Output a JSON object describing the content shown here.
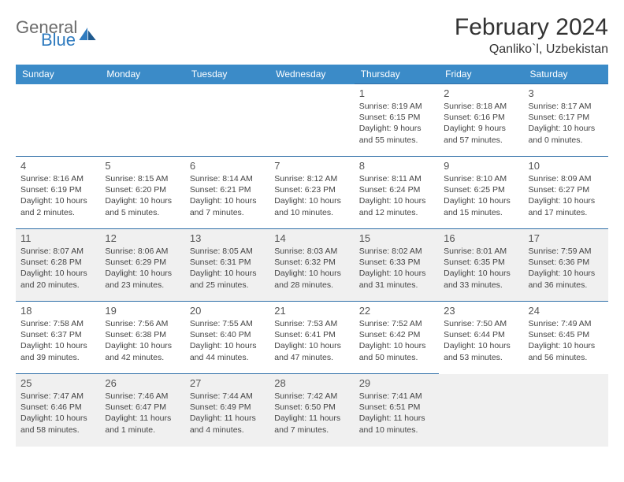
{
  "logo": {
    "part1": "General",
    "part2": "Blue"
  },
  "title": "February 2024",
  "location": "Qanliko`l, Uzbekistan",
  "colors": {
    "header_bg": "#3b8bc8",
    "header_text": "#ffffff",
    "rule": "#2f6fa8",
    "shaded_row": "#f0f0f0",
    "logo_gray": "#6b6b6b",
    "logo_blue": "#2f7bbf"
  },
  "weekdays": [
    "Sunday",
    "Monday",
    "Tuesday",
    "Wednesday",
    "Thursday",
    "Friday",
    "Saturday"
  ],
  "weeks": [
    {
      "shaded": false,
      "days": [
        null,
        null,
        null,
        null,
        {
          "n": "1",
          "sunrise": "8:19 AM",
          "sunset": "6:15 PM",
          "daylight": "9 hours and 55 minutes."
        },
        {
          "n": "2",
          "sunrise": "8:18 AM",
          "sunset": "6:16 PM",
          "daylight": "9 hours and 57 minutes."
        },
        {
          "n": "3",
          "sunrise": "8:17 AM",
          "sunset": "6:17 PM",
          "daylight": "10 hours and 0 minutes."
        }
      ]
    },
    {
      "shaded": false,
      "days": [
        {
          "n": "4",
          "sunrise": "8:16 AM",
          "sunset": "6:19 PM",
          "daylight": "10 hours and 2 minutes."
        },
        {
          "n": "5",
          "sunrise": "8:15 AM",
          "sunset": "6:20 PM",
          "daylight": "10 hours and 5 minutes."
        },
        {
          "n": "6",
          "sunrise": "8:14 AM",
          "sunset": "6:21 PM",
          "daylight": "10 hours and 7 minutes."
        },
        {
          "n": "7",
          "sunrise": "8:12 AM",
          "sunset": "6:23 PM",
          "daylight": "10 hours and 10 minutes."
        },
        {
          "n": "8",
          "sunrise": "8:11 AM",
          "sunset": "6:24 PM",
          "daylight": "10 hours and 12 minutes."
        },
        {
          "n": "9",
          "sunrise": "8:10 AM",
          "sunset": "6:25 PM",
          "daylight": "10 hours and 15 minutes."
        },
        {
          "n": "10",
          "sunrise": "8:09 AM",
          "sunset": "6:27 PM",
          "daylight": "10 hours and 17 minutes."
        }
      ]
    },
    {
      "shaded": true,
      "days": [
        {
          "n": "11",
          "sunrise": "8:07 AM",
          "sunset": "6:28 PM",
          "daylight": "10 hours and 20 minutes."
        },
        {
          "n": "12",
          "sunrise": "8:06 AM",
          "sunset": "6:29 PM",
          "daylight": "10 hours and 23 minutes."
        },
        {
          "n": "13",
          "sunrise": "8:05 AM",
          "sunset": "6:31 PM",
          "daylight": "10 hours and 25 minutes."
        },
        {
          "n": "14",
          "sunrise": "8:03 AM",
          "sunset": "6:32 PM",
          "daylight": "10 hours and 28 minutes."
        },
        {
          "n": "15",
          "sunrise": "8:02 AM",
          "sunset": "6:33 PM",
          "daylight": "10 hours and 31 minutes."
        },
        {
          "n": "16",
          "sunrise": "8:01 AM",
          "sunset": "6:35 PM",
          "daylight": "10 hours and 33 minutes."
        },
        {
          "n": "17",
          "sunrise": "7:59 AM",
          "sunset": "6:36 PM",
          "daylight": "10 hours and 36 minutes."
        }
      ]
    },
    {
      "shaded": false,
      "days": [
        {
          "n": "18",
          "sunrise": "7:58 AM",
          "sunset": "6:37 PM",
          "daylight": "10 hours and 39 minutes."
        },
        {
          "n": "19",
          "sunrise": "7:56 AM",
          "sunset": "6:38 PM",
          "daylight": "10 hours and 42 minutes."
        },
        {
          "n": "20",
          "sunrise": "7:55 AM",
          "sunset": "6:40 PM",
          "daylight": "10 hours and 44 minutes."
        },
        {
          "n": "21",
          "sunrise": "7:53 AM",
          "sunset": "6:41 PM",
          "daylight": "10 hours and 47 minutes."
        },
        {
          "n": "22",
          "sunrise": "7:52 AM",
          "sunset": "6:42 PM",
          "daylight": "10 hours and 50 minutes."
        },
        {
          "n": "23",
          "sunrise": "7:50 AM",
          "sunset": "6:44 PM",
          "daylight": "10 hours and 53 minutes."
        },
        {
          "n": "24",
          "sunrise": "7:49 AM",
          "sunset": "6:45 PM",
          "daylight": "10 hours and 56 minutes."
        }
      ]
    },
    {
      "shaded": true,
      "days": [
        {
          "n": "25",
          "sunrise": "7:47 AM",
          "sunset": "6:46 PM",
          "daylight": "10 hours and 58 minutes."
        },
        {
          "n": "26",
          "sunrise": "7:46 AM",
          "sunset": "6:47 PM",
          "daylight": "11 hours and 1 minute."
        },
        {
          "n": "27",
          "sunrise": "7:44 AM",
          "sunset": "6:49 PM",
          "daylight": "11 hours and 4 minutes."
        },
        {
          "n": "28",
          "sunrise": "7:42 AM",
          "sunset": "6:50 PM",
          "daylight": "11 hours and 7 minutes."
        },
        {
          "n": "29",
          "sunrise": "7:41 AM",
          "sunset": "6:51 PM",
          "daylight": "11 hours and 10 minutes."
        },
        null,
        null
      ]
    }
  ],
  "labels": {
    "sunrise": "Sunrise:",
    "sunset": "Sunset:",
    "daylight": "Daylight:"
  }
}
